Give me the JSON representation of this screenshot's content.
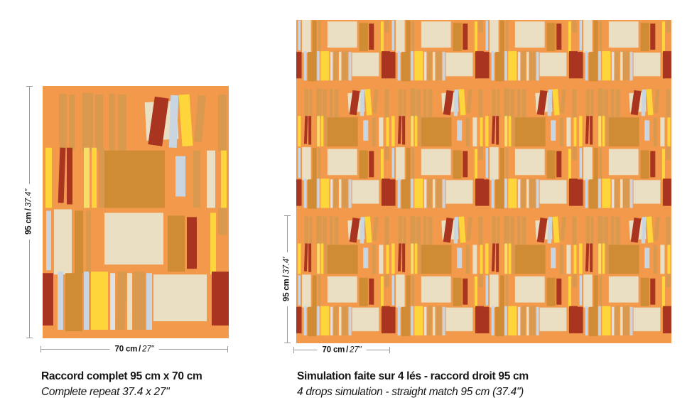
{
  "palette": {
    "bg": "#F2994B",
    "tan": "#D99A50",
    "ochre": "#D08B35",
    "cream": "#EADFC2",
    "yellow": "#FFD53C",
    "yellow2": "#F8DD6A",
    "blue": "#C9D5E0",
    "blue2": "#DDE2E6",
    "red": "#A93520",
    "dim_line": "#9A9A9A",
    "text": "#161616"
  },
  "left_panel": {
    "vertical_dim": {
      "metric": "95 cm",
      "sep": "/",
      "imperial": "37.4\""
    },
    "horizontal_dim": {
      "metric": "70 cm",
      "sep": "/",
      "imperial": "27\""
    },
    "caption_line1": "Raccord complet 95 cm x 70 cm",
    "caption_line2": "Complete repeat 37.4 x 27\""
  },
  "right_panel": {
    "vertical_dim": {
      "metric": "95 cm",
      "sep": "/",
      "imperial": "37.4'"
    },
    "horizontal_dim": {
      "metric": "70 cm",
      "sep": "/",
      "imperial": "27\""
    },
    "caption_line1": "Simulation faite sur 4 lés - raccord droit 95 cm",
    "caption_line2": "4 drops simulation - straight match 95 cm (37.4\")"
  },
  "pattern_info": {
    "drops": 4,
    "repeat_width_cm": 70,
    "repeat_height_cm": 95,
    "match": "straight"
  }
}
